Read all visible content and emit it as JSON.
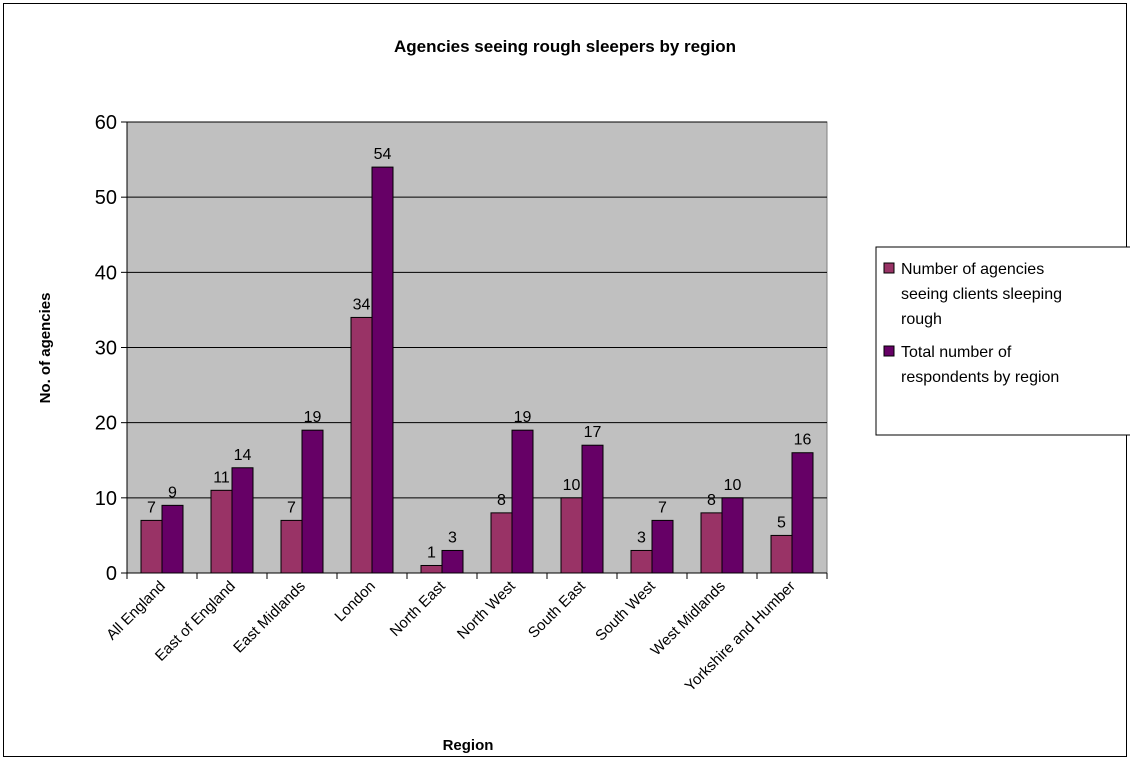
{
  "chart_data": {
    "type": "bar",
    "title": "Agencies seeing rough sleepers by region",
    "xlabel": "Region",
    "ylabel": "No. of agencies",
    "ylim": [
      0,
      60
    ],
    "yticks": [
      0,
      10,
      20,
      30,
      40,
      50,
      60
    ],
    "grid": true,
    "legend_position": "right",
    "categories": [
      "All England",
      "East of England",
      "East Midlands",
      "London",
      "North East",
      "North West",
      "South East",
      "South West",
      "West Midlands",
      "Yorkshire and Humber"
    ],
    "series": [
      {
        "name": "Number of agencies seeing clients sleeping rough",
        "legend_lines": [
          "Number of agencies",
          "seeing clients sleeping",
          "rough"
        ],
        "color": "#993366",
        "values": [
          7,
          11,
          7,
          34,
          1,
          8,
          10,
          3,
          8,
          5
        ]
      },
      {
        "name": "Total number of respondents by region",
        "legend_lines": [
          "Total number of",
          "respondents by region"
        ],
        "color": "#660066",
        "values": [
          9,
          14,
          19,
          54,
          3,
          19,
          17,
          7,
          10,
          16
        ]
      }
    ],
    "plot_background": "#c0c0c0"
  }
}
